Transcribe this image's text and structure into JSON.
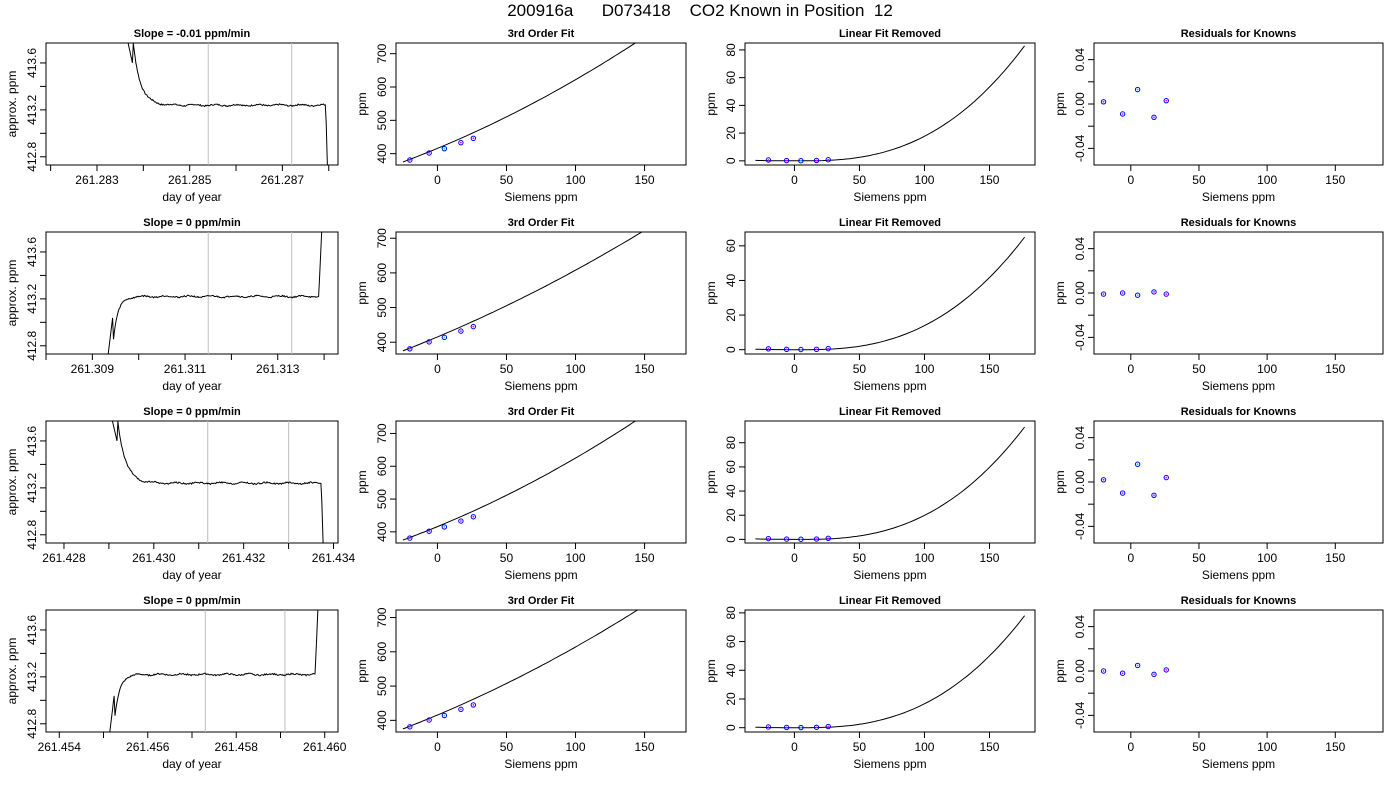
{
  "page_title": "200916a      D073418    CO2 Known in Position  12",
  "colors": {
    "curve": "#000000",
    "marker_outline": "#0000ff",
    "marker_fill_a": "#ff00ff",
    "marker_fill_b": "#00e0e0",
    "gridline": "#bebebe"
  },
  "chart_data": [
    {
      "row": 0,
      "col": 0,
      "type": "line",
      "title": "Slope =  -0.01  ppm/min",
      "xlabel": "day of year",
      "ylabel": "approx. ppm",
      "xlim": [
        261.2819,
        261.2882
      ],
      "ylim": [
        412.73,
        413.77
      ],
      "xticks": [
        261.282,
        261.283,
        261.284,
        261.285,
        261.286,
        261.287,
        261.288
      ],
      "xticklabels": [
        "",
        "261.283",
        "",
        "261.285",
        "",
        "261.287",
        ""
      ],
      "yticks": [
        412.8,
        413.0,
        413.2,
        413.4,
        413.6
      ],
      "yticklabels": [
        "412.8",
        "",
        "413.2",
        "",
        "413.6"
      ],
      "vlines": [
        261.2854,
        261.2872
      ],
      "trace": "fall",
      "trace_start": 261.2836,
      "trace_end": 261.288,
      "plateau": 413.24
    },
    {
      "row": 0,
      "col": 1,
      "type": "line",
      "title": "3rd Order Fit",
      "xlabel": "Siemens ppm",
      "ylabel": "ppm",
      "xlim": [
        -30,
        180
      ],
      "ylim": [
        366,
        732
      ],
      "xticks": [
        0,
        50,
        100,
        150
      ],
      "xticklabels": [
        "0",
        "50",
        "100",
        "150"
      ],
      "yticks": [
        400,
        500,
        600,
        700
      ],
      "yticklabels": [
        "400",
        "500",
        "600",
        "700"
      ],
      "curve": {
        "x0": -25,
        "x1": 177,
        "y_at_x0": 375,
        "slope": 1.55,
        "quad": 0.0034
      },
      "points": {
        "x": [
          -20,
          -6,
          5,
          17,
          26
        ],
        "y": [
          381,
          402,
          415,
          433,
          446
        ]
      }
    },
    {
      "row": 0,
      "col": 2,
      "type": "line",
      "title": "Linear Fit Removed",
      "xlabel": "Siemens ppm",
      "ylabel": "ppm",
      "xlim": [
        -38,
        185
      ],
      "ylim": [
        -3,
        85
      ],
      "xticks": [
        -50,
        0,
        50,
        100,
        150
      ],
      "xticklabels": [
        "-50",
        "0",
        "50",
        "100",
        "150"
      ],
      "yticks": [
        0,
        20,
        40,
        60,
        80
      ],
      "yticklabels": [
        "0",
        "20",
        "40",
        "60",
        "80"
      ],
      "curve": {
        "x0": -30,
        "x1": 177,
        "min_x": 5,
        "y_at_end": 83
      },
      "points": {
        "x": [
          -20,
          -6,
          5,
          17,
          26
        ],
        "y": [
          0.6,
          0.2,
          0.1,
          0.3,
          0.8
        ]
      }
    },
    {
      "row": 0,
      "col": 3,
      "type": "scatter",
      "title": "Residuals for Knowns",
      "xlabel": "Siemens ppm",
      "ylabel": "ppm",
      "xlim": [
        -27,
        185
      ],
      "ylim": [
        -0.055,
        0.055
      ],
      "xticks": [
        0,
        50,
        100,
        150
      ],
      "xticklabels": [
        "0",
        "50",
        "100",
        "150"
      ],
      "yticks": [
        -0.04,
        -0.02,
        0,
        0.02,
        0.04
      ],
      "yticklabels": [
        "-0.04",
        "",
        "0.00",
        "",
        "0.04"
      ],
      "points": {
        "x": [
          -20,
          -6,
          5,
          17,
          26
        ],
        "y": [
          0.002,
          -0.009,
          0.013,
          -0.012,
          0.003
        ]
      }
    },
    {
      "row": 1,
      "col": 0,
      "type": "line",
      "title": "Slope =  0  ppm/min",
      "xlabel": "day of year",
      "ylabel": "approx. ppm",
      "xlim": [
        261.308,
        261.3143
      ],
      "ylim": [
        412.73,
        413.77
      ],
      "xticks": [
        261.308,
        261.309,
        261.31,
        261.311,
        261.312,
        261.313,
        261.314
      ],
      "xticklabels": [
        "",
        "261.309",
        "",
        "261.311",
        "",
        "261.313",
        ""
      ],
      "yticks": [
        412.8,
        413.0,
        413.2,
        413.4,
        413.6
      ],
      "yticklabels": [
        "412.8",
        "",
        "413.2",
        "",
        "413.6"
      ],
      "vlines": [
        261.3115,
        261.3133
      ],
      "trace": "rise",
      "trace_start": 261.3093,
      "trace_end": 261.314,
      "plateau": 413.22
    },
    {
      "row": 1,
      "col": 1,
      "type": "line",
      "title": "3rd Order Fit",
      "xlabel": "Siemens ppm",
      "ylabel": "ppm",
      "xlim": [
        -30,
        180
      ],
      "ylim": [
        366,
        718
      ],
      "xticks": [
        0,
        50,
        100,
        150
      ],
      "xticklabels": [
        "0",
        "50",
        "100",
        "150"
      ],
      "yticks": [
        400,
        500,
        600,
        700
      ],
      "yticklabels": [
        "400",
        "500",
        "600",
        "700"
      ],
      "curve": {
        "x0": -25,
        "x1": 177,
        "y_at_x0": 375,
        "slope": 1.55,
        "quad": 0.0025
      },
      "points": {
        "x": [
          -20,
          -6,
          5,
          17,
          26
        ],
        "y": [
          381,
          401,
          414,
          432,
          445
        ]
      }
    },
    {
      "row": 1,
      "col": 2,
      "type": "line",
      "title": "Linear Fit Removed",
      "xlabel": "Siemens ppm",
      "ylabel": "ppm",
      "xlim": [
        -38,
        185
      ],
      "ylim": [
        -2.5,
        68
      ],
      "xticks": [
        -50,
        0,
        50,
        100,
        150
      ],
      "xticklabels": [
        "-50",
        "0",
        "50",
        "100",
        "150"
      ],
      "yticks": [
        0,
        20,
        40,
        60
      ],
      "yticklabels": [
        "0",
        "20",
        "40",
        "60"
      ],
      "curve": {
        "x0": -30,
        "x1": 177,
        "min_x": 5,
        "y_at_end": 65
      },
      "points": {
        "x": [
          -20,
          -6,
          5,
          17,
          26
        ],
        "y": [
          0.5,
          0.2,
          0.1,
          0.2,
          0.6
        ]
      }
    },
    {
      "row": 1,
      "col": 3,
      "type": "scatter",
      "title": "Residuals for Knowns",
      "xlabel": "Siemens ppm",
      "ylabel": "ppm",
      "xlim": [
        -27,
        185
      ],
      "ylim": [
        -0.055,
        0.055
      ],
      "xticks": [
        0,
        50,
        100,
        150
      ],
      "xticklabels": [
        "0",
        "50",
        "100",
        "150"
      ],
      "yticks": [
        -0.04,
        -0.02,
        0,
        0.02,
        0.04
      ],
      "yticklabels": [
        "-0.04",
        "",
        "0.00",
        "",
        "0.04"
      ],
      "points": {
        "x": [
          -20,
          -6,
          5,
          17,
          26
        ],
        "y": [
          -0.001,
          0.0,
          -0.002,
          0.001,
          -0.001
        ]
      }
    },
    {
      "row": 2,
      "col": 0,
      "type": "line",
      "title": "Slope =  0  ppm/min",
      "xlabel": "day of year",
      "ylabel": "approx. ppm",
      "xlim": [
        261.4276,
        261.4341
      ],
      "ylim": [
        412.73,
        413.77
      ],
      "xticks": [
        261.428,
        261.429,
        261.43,
        261.431,
        261.432,
        261.433,
        261.434
      ],
      "xticklabels": [
        "261.428",
        "",
        "261.430",
        "",
        "261.432",
        "",
        "261.434"
      ],
      "yticks": [
        412.8,
        413.0,
        413.2,
        413.4,
        413.6
      ],
      "yticklabels": [
        "412.8",
        "",
        "413.2",
        "",
        "413.6"
      ],
      "vlines": [
        261.4312,
        261.433
      ],
      "trace": "fall",
      "trace_start": 261.429,
      "trace_end": 261.4338,
      "plateau": 413.24
    },
    {
      "row": 2,
      "col": 1,
      "type": "line",
      "title": "3rd Order Fit",
      "xlabel": "Siemens ppm",
      "ylabel": "ppm",
      "xlim": [
        -30,
        180
      ],
      "ylim": [
        366,
        738
      ],
      "xticks": [
        0,
        50,
        100,
        150
      ],
      "xticklabels": [
        "0",
        "50",
        "100",
        "150"
      ],
      "yticks": [
        400,
        500,
        600,
        700
      ],
      "yticklabels": [
        "400",
        "500",
        "600",
        "700"
      ],
      "curve": {
        "x0": -25,
        "x1": 177,
        "y_at_x0": 375,
        "slope": 1.55,
        "quad": 0.0036
      },
      "points": {
        "x": [
          -20,
          -6,
          5,
          17,
          26
        ],
        "y": [
          381,
          402,
          415,
          433,
          446
        ]
      }
    },
    {
      "row": 2,
      "col": 2,
      "type": "line",
      "title": "Linear Fit Removed",
      "xlabel": "Siemens ppm",
      "ylabel": "ppm",
      "xlim": [
        -38,
        185
      ],
      "ylim": [
        -3,
        98
      ],
      "xticks": [
        -50,
        0,
        50,
        100,
        150
      ],
      "xticklabels": [
        "-50",
        "0",
        "50",
        "100",
        "150"
      ],
      "yticks": [
        0,
        20,
        40,
        60,
        80
      ],
      "yticklabels": [
        "0",
        "20",
        "40",
        "60",
        "80"
      ],
      "curve": {
        "x0": -30,
        "x1": 177,
        "min_x": 5,
        "y_at_end": 93
      },
      "points": {
        "x": [
          -20,
          -6,
          5,
          17,
          26
        ],
        "y": [
          0.6,
          0.2,
          0.1,
          0.3,
          0.9
        ]
      }
    },
    {
      "row": 2,
      "col": 3,
      "type": "scatter",
      "title": "Residuals for Knowns",
      "xlabel": "Siemens ppm",
      "ylabel": "ppm",
      "xlim": [
        -27,
        185
      ],
      "ylim": [
        -0.055,
        0.055
      ],
      "xticks": [
        0,
        50,
        100,
        150
      ],
      "xticklabels": [
        "0",
        "50",
        "100",
        "150"
      ],
      "yticks": [
        -0.04,
        -0.02,
        0,
        0.02,
        0.04
      ],
      "yticklabels": [
        "-0.04",
        "",
        "0.00",
        "",
        "0.04"
      ],
      "points": {
        "x": [
          -20,
          -6,
          5,
          17,
          26
        ],
        "y": [
          0.002,
          -0.01,
          0.016,
          -0.012,
          0.004
        ]
      }
    },
    {
      "row": 3,
      "col": 0,
      "type": "line",
      "title": "Slope =  0  ppm/min",
      "xlabel": "day of year",
      "ylabel": "approx. ppm",
      "xlim": [
        261.4537,
        261.4603
      ],
      "ylim": [
        412.73,
        413.77
      ],
      "xticks": [
        261.454,
        261.455,
        261.456,
        261.457,
        261.458,
        261.459,
        261.46
      ],
      "xticklabels": [
        "261.454",
        "",
        "261.456",
        "",
        "261.458",
        "",
        "261.460"
      ],
      "yticks": [
        412.8,
        413.0,
        413.2,
        413.4,
        413.6
      ],
      "yticklabels": [
        "412.8",
        "",
        "413.2",
        "",
        "413.6"
      ],
      "vlines": [
        261.4573,
        261.4591
      ],
      "trace": "rise",
      "trace_start": 261.4551,
      "trace_end": 261.4599,
      "plateau": 413.22
    },
    {
      "row": 3,
      "col": 1,
      "type": "line",
      "title": "3rd Order Fit",
      "xlabel": "Siemens ppm",
      "ylabel": "ppm",
      "xlim": [
        -30,
        180
      ],
      "ylim": [
        366,
        722
      ],
      "xticks": [
        0,
        50,
        100,
        150
      ],
      "xticklabels": [
        "0",
        "50",
        "100",
        "150"
      ],
      "yticks": [
        400,
        500,
        600,
        700
      ],
      "yticklabels": [
        "400",
        "500",
        "600",
        "700"
      ],
      "curve": {
        "x0": -25,
        "x1": 177,
        "y_at_x0": 375,
        "slope": 1.55,
        "quad": 0.0029
      },
      "points": {
        "x": [
          -20,
          -6,
          5,
          17,
          26
        ],
        "y": [
          381,
          401,
          414,
          432,
          445
        ]
      }
    },
    {
      "row": 3,
      "col": 2,
      "type": "line",
      "title": "Linear Fit Removed",
      "xlabel": "Siemens ppm",
      "ylabel": "ppm",
      "xlim": [
        -38,
        185
      ],
      "ylim": [
        -3,
        82
      ],
      "xticks": [
        -50,
        0,
        50,
        100,
        150
      ],
      "xticklabels": [
        "-50",
        "0",
        "50",
        "100",
        "150"
      ],
      "yticks": [
        0,
        20,
        40,
        60,
        80
      ],
      "yticklabels": [
        "0",
        "20",
        "40",
        "60",
        "80"
      ],
      "curve": {
        "x0": -30,
        "x1": 177,
        "min_x": 5,
        "y_at_end": 78
      },
      "points": {
        "x": [
          -20,
          -6,
          5,
          17,
          26
        ],
        "y": [
          0.5,
          0.2,
          0.1,
          0.3,
          0.8
        ]
      }
    },
    {
      "row": 3,
      "col": 3,
      "type": "scatter",
      "title": "Residuals for Knowns",
      "xlabel": "Siemens ppm",
      "ylabel": "ppm",
      "xlim": [
        -27,
        185
      ],
      "ylim": [
        -0.055,
        0.055
      ],
      "xticks": [
        0,
        50,
        100,
        150
      ],
      "xticklabels": [
        "0",
        "50",
        "100",
        "150"
      ],
      "yticks": [
        -0.04,
        -0.02,
        0,
        0.02,
        0.04
      ],
      "yticklabels": [
        "-0.04",
        "",
        "0.00",
        "",
        "0.04"
      ],
      "points": {
        "x": [
          -20,
          -6,
          5,
          17,
          26
        ],
        "y": [
          0.0,
          -0.002,
          0.005,
          -0.003,
          0.001
        ]
      }
    }
  ]
}
